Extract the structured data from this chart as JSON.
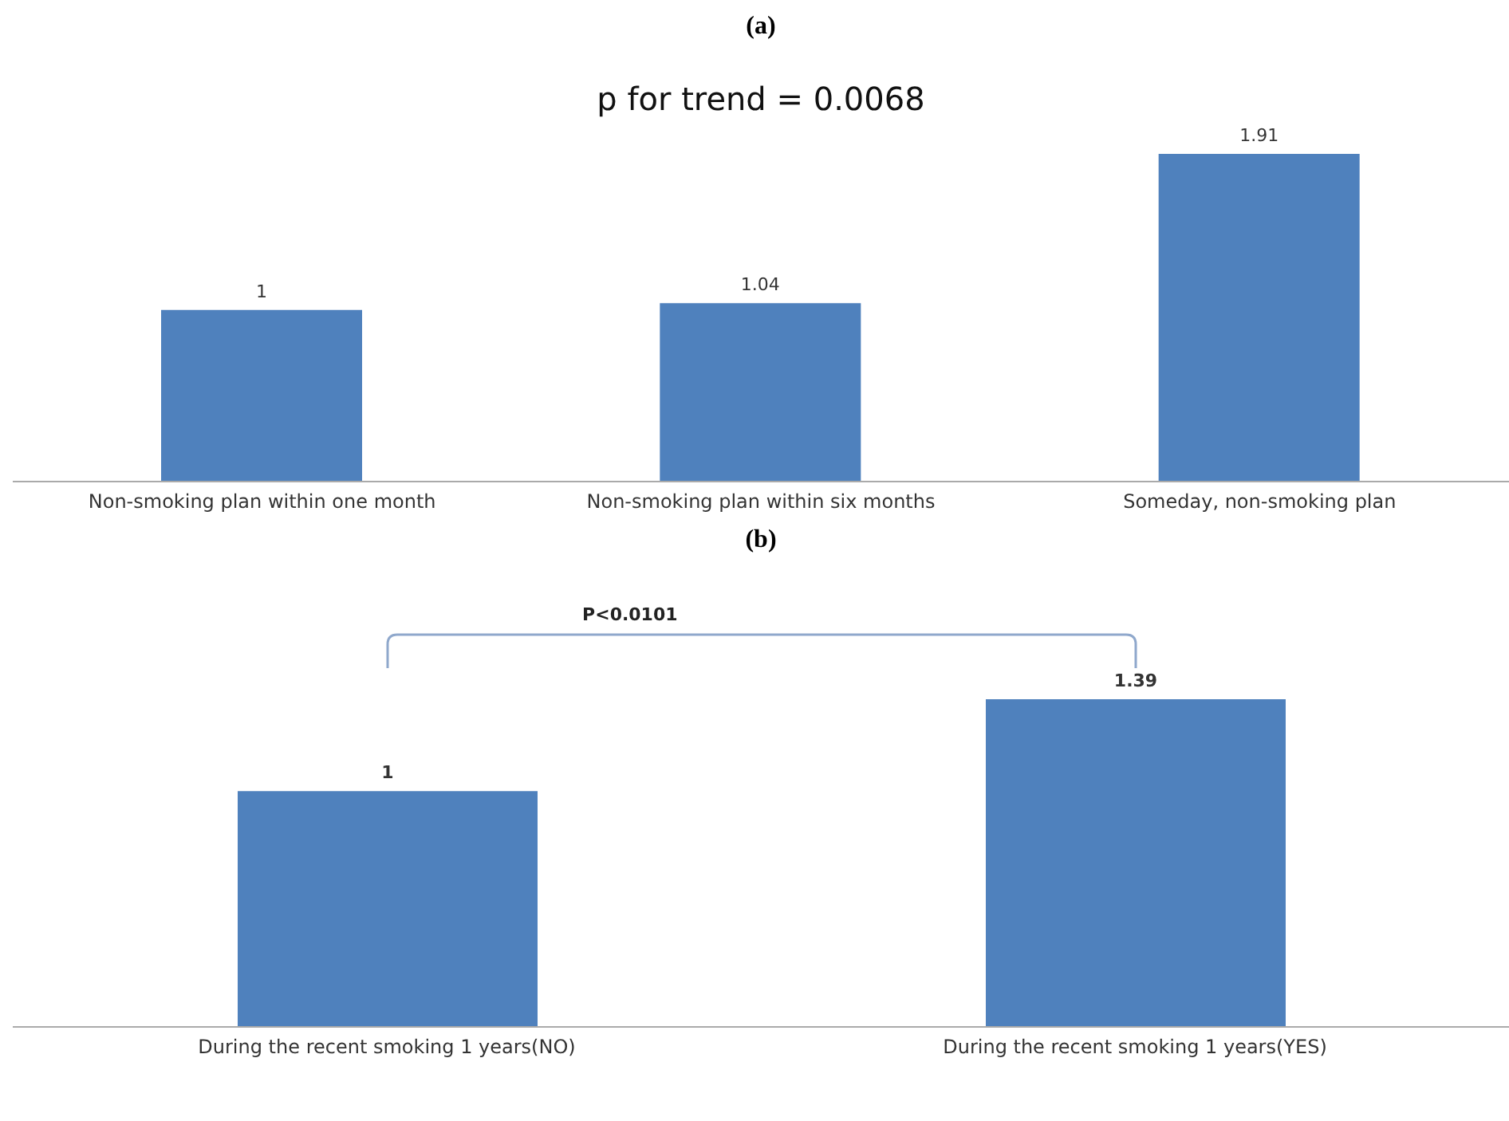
{
  "chart_data": [
    {
      "type": "bar",
      "title": "(a)",
      "categories": [
        "Non-smoking plan within one month",
        "Non-smoking plan within six months",
        "Someday, non-smoking plan"
      ],
      "values": [
        1,
        1.04,
        1.91
      ],
      "color": "#4f81bd",
      "data_labels": true,
      "annotations": [
        "p for trend = 0.0068"
      ]
    },
    {
      "type": "bar",
      "title": "(b)",
      "categories": [
        "During the recent smoking 1 years(NO)",
        "During the recent smoking 1 years(YES)"
      ],
      "values": [
        1,
        1.39
      ],
      "color": "#4f81bd",
      "data_labels": true,
      "annotations": [
        "P<0.0101"
      ]
    }
  ]
}
